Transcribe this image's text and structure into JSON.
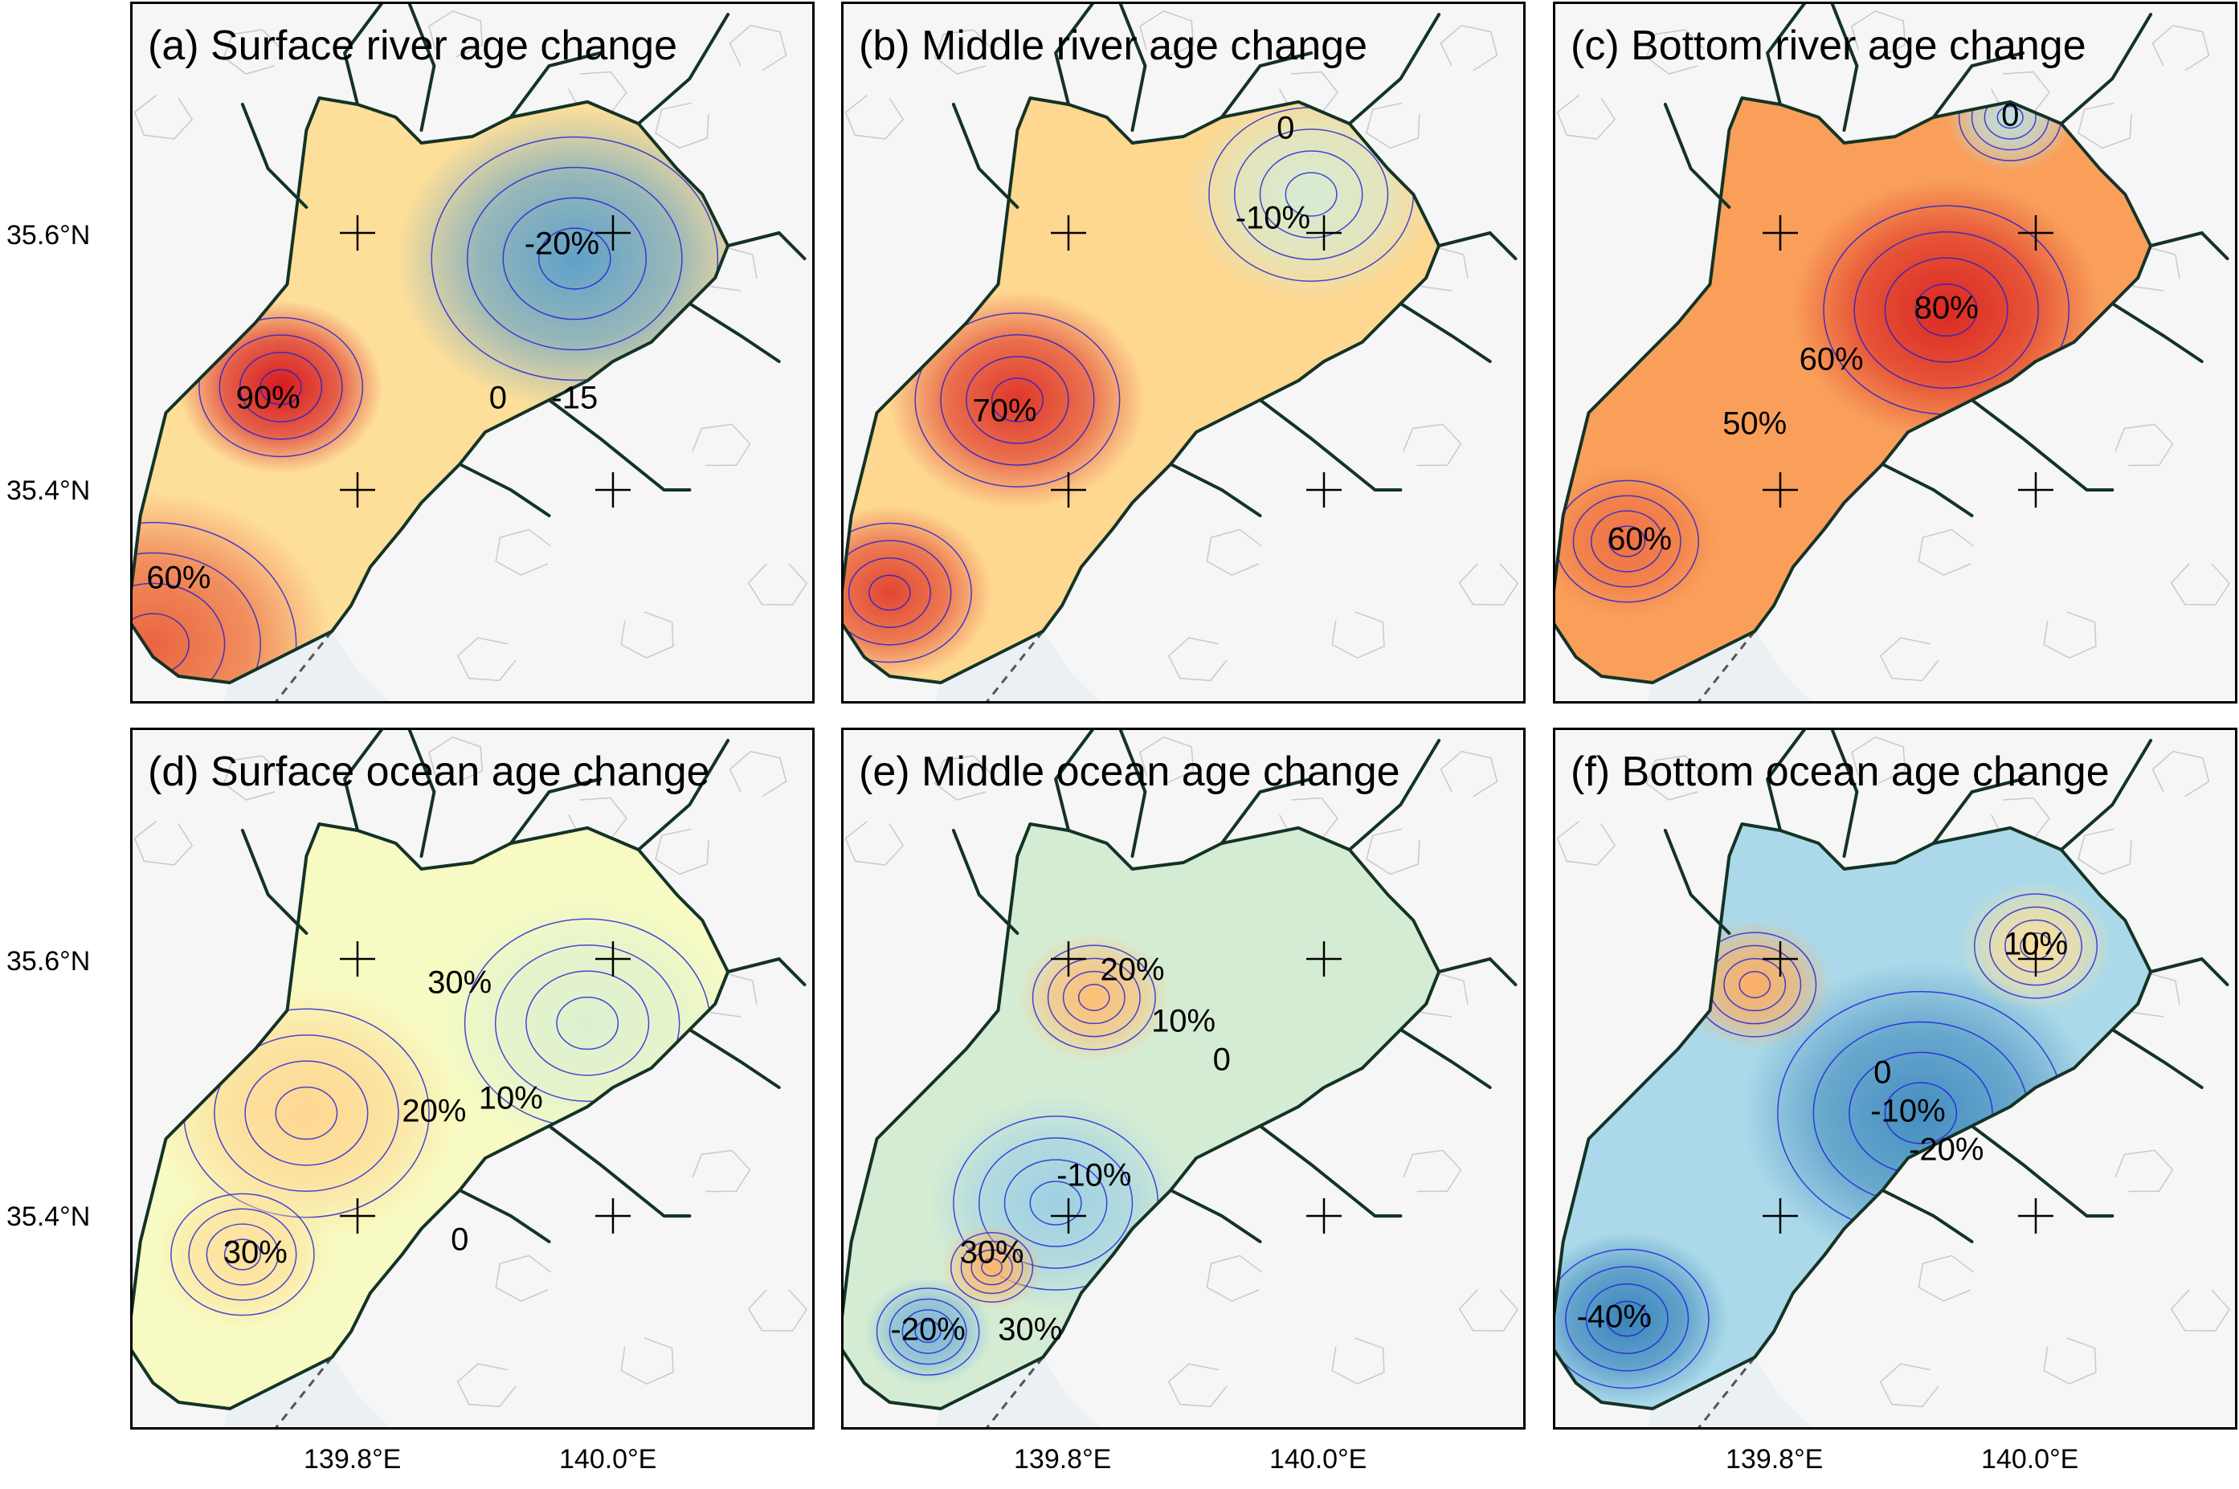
{
  "colors": {
    "land": "#f6f6f6",
    "boundary": "#c9c9c9",
    "coast": "#133326",
    "contour_blue": "#1b1bd8",
    "frame": "#000000",
    "scale": [
      "#2c7bb6",
      "#abd9e9",
      "#ffffbf",
      "#fdae61",
      "#d7191c"
    ]
  },
  "axes": {
    "lat_ticks": [
      "35.6°N",
      "35.4°N"
    ],
    "lon_ticks": [
      "139.8°E",
      "140.0°E"
    ]
  },
  "panels": [
    {
      "id": "a",
      "title": "(a) Surface river age change",
      "base_level": 0.2,
      "blobs": [
        {
          "lon": 139.64,
          "lat": 35.28,
          "value": 0.75,
          "r": 0.14
        },
        {
          "lon": 139.74,
          "lat": 35.48,
          "value": 1.0,
          "r": 0.08
        },
        {
          "lon": 139.97,
          "lat": 35.58,
          "value": -0.8,
          "r": 0.14
        }
      ],
      "labels": [
        {
          "text": "90%",
          "lon": 139.73,
          "lat": 35.47
        },
        {
          "text": "60%",
          "lon": 139.66,
          "lat": 35.33
        },
        {
          "text": "-20%",
          "lon": 139.96,
          "lat": 35.59
        },
        {
          "text": "0",
          "lon": 139.91,
          "lat": 35.47
        },
        {
          "text": "-15",
          "lon": 139.97,
          "lat": 35.47
        }
      ]
    },
    {
      "id": "b",
      "title": "(b) Middle river age change",
      "base_level": 0.25,
      "blobs": [
        {
          "lon": 139.76,
          "lat": 35.47,
          "value": 0.9,
          "r": 0.1
        },
        {
          "lon": 139.66,
          "lat": 35.32,
          "value": 0.85,
          "r": 0.08
        },
        {
          "lon": 139.99,
          "lat": 35.63,
          "value": -0.25,
          "r": 0.1
        }
      ],
      "labels": [
        {
          "text": "70%",
          "lon": 139.75,
          "lat": 35.46
        },
        {
          "text": "-10%",
          "lon": 139.96,
          "lat": 35.61
        },
        {
          "text": "0",
          "lon": 139.97,
          "lat": 35.68
        }
      ]
    },
    {
      "id": "c",
      "title": "(c) Bottom river age change",
      "base_level": 0.55,
      "blobs": [
        {
          "lon": 139.93,
          "lat": 35.54,
          "value": 0.95,
          "r": 0.12
        },
        {
          "lon": 139.68,
          "lat": 35.36,
          "value": 0.7,
          "r": 0.07
        },
        {
          "lon": 139.98,
          "lat": 35.69,
          "value": -0.4,
          "r": 0.05
        }
      ],
      "labels": [
        {
          "text": "80%",
          "lon": 139.93,
          "lat": 35.54
        },
        {
          "text": "60%",
          "lon": 139.84,
          "lat": 35.5
        },
        {
          "text": "50%",
          "lon": 139.78,
          "lat": 35.45
        },
        {
          "text": "60%",
          "lon": 139.69,
          "lat": 35.36
        },
        {
          "text": "0",
          "lon": 139.98,
          "lat": 35.69
        }
      ]
    },
    {
      "id": "d",
      "title": "(d) Surface ocean age change",
      "base_level": -0.05,
      "blobs": [
        {
          "lon": 139.76,
          "lat": 35.48,
          "value": 0.25,
          "r": 0.12
        },
        {
          "lon": 139.71,
          "lat": 35.37,
          "value": 0.2,
          "r": 0.07
        },
        {
          "lon": 139.98,
          "lat": 35.55,
          "value": -0.2,
          "r": 0.12
        }
      ],
      "labels": [
        {
          "text": "30%",
          "lon": 139.88,
          "lat": 35.58
        },
        {
          "text": "20%",
          "lon": 139.86,
          "lat": 35.48
        },
        {
          "text": "10%",
          "lon": 139.92,
          "lat": 35.49
        },
        {
          "text": "30%",
          "lon": 139.72,
          "lat": 35.37
        },
        {
          "text": "0",
          "lon": 139.88,
          "lat": 35.38
        }
      ]
    },
    {
      "id": "e",
      "title": "(e) Middle ocean age change",
      "base_level": -0.25,
      "blobs": [
        {
          "lon": 139.79,
          "lat": 35.41,
          "value": -0.55,
          "r": 0.1
        },
        {
          "lon": 139.69,
          "lat": 35.31,
          "value": -0.7,
          "r": 0.05
        },
        {
          "lon": 139.74,
          "lat": 35.36,
          "value": 0.45,
          "r": 0.04
        },
        {
          "lon": 139.82,
          "lat": 35.57,
          "value": 0.4,
          "r": 0.06
        }
      ],
      "labels": [
        {
          "text": "20%",
          "lon": 139.85,
          "lat": 35.59
        },
        {
          "text": "10%",
          "lon": 139.89,
          "lat": 35.55
        },
        {
          "text": "0",
          "lon": 139.92,
          "lat": 35.52
        },
        {
          "text": "-10%",
          "lon": 139.82,
          "lat": 35.43
        },
        {
          "text": "30%",
          "lon": 139.74,
          "lat": 35.37
        },
        {
          "text": "-20%",
          "lon": 139.69,
          "lat": 35.31
        },
        {
          "text": "30%",
          "lon": 139.77,
          "lat": 35.31
        }
      ]
    },
    {
      "id": "f",
      "title": "(f) Bottom ocean age change",
      "base_level": -0.5,
      "blobs": [
        {
          "lon": 139.91,
          "lat": 35.48,
          "value": -0.9,
          "r": 0.14
        },
        {
          "lon": 139.68,
          "lat": 35.32,
          "value": -0.95,
          "r": 0.08
        },
        {
          "lon": 139.78,
          "lat": 35.58,
          "value": 0.5,
          "r": 0.06
        },
        {
          "lon": 140.0,
          "lat": 35.61,
          "value": 0.2,
          "r": 0.06
        }
      ],
      "labels": [
        {
          "text": "10%",
          "lon": 140.0,
          "lat": 35.61
        },
        {
          "text": "0",
          "lon": 139.88,
          "lat": 35.51
        },
        {
          "text": "-10%",
          "lon": 139.9,
          "lat": 35.48
        },
        {
          "text": "-20%",
          "lon": 139.93,
          "lat": 35.45
        },
        {
          "text": "-40%",
          "lon": 139.67,
          "lat": 35.32
        }
      ]
    }
  ]
}
